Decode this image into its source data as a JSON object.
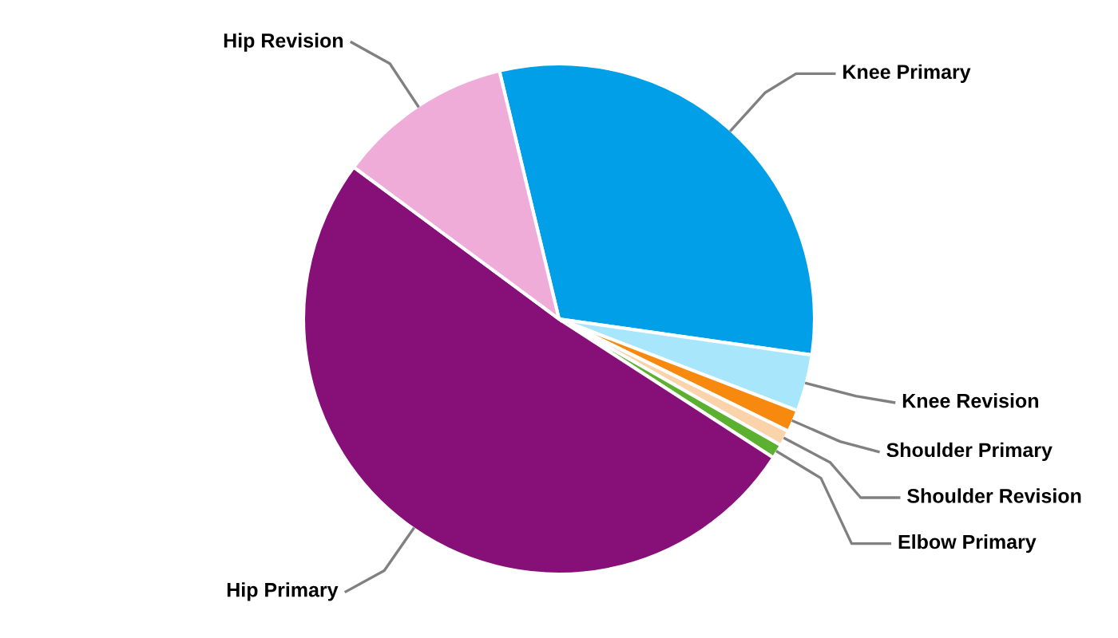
{
  "chart_data": {
    "type": "pie",
    "categories": [
      "Knee Primary",
      "Knee Revision",
      "Shoulder Primary",
      "Shoulder Revision",
      "Elbow Primary",
      "Hip Primary",
      "Hip Revision"
    ],
    "values": [
      31,
      3.6,
      1.4,
      1,
      0.9,
      51,
      11.1
    ],
    "colors": [
      "#009fe8",
      "#a8e6fc",
      "#f7890f",
      "#fbd3aa",
      "#5cb030",
      "#870f78",
      "#f0acd8"
    ],
    "legend": false
  }
}
